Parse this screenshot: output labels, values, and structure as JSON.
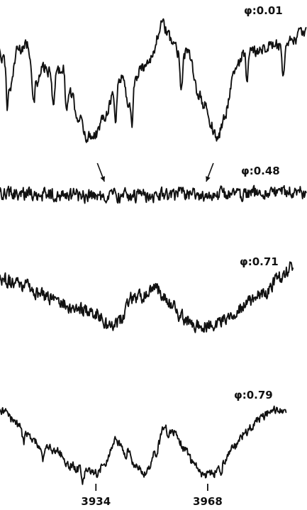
{
  "chart_data": {
    "type": "line",
    "title": "",
    "xlabel": "",
    "ylabel": "",
    "xlim": [
      3910,
      3998
    ],
    "grid": false,
    "x_ticks": [
      {
        "value": 3934,
        "label": "3934"
      },
      {
        "value": 3968,
        "label": "3968"
      }
    ],
    "series": [
      {
        "name": "φ:0.01",
        "x_range": [
          3898,
          3998
        ],
        "anchors": [
          [
            3898,
            0.9
          ],
          [
            3903,
            0.92
          ],
          [
            3906,
            0.7
          ],
          [
            3908,
            0.45
          ],
          [
            3910,
            0.78
          ],
          [
            3913,
            0.82
          ],
          [
            3916,
            0.48
          ],
          [
            3918,
            0.62
          ],
          [
            3921,
            0.55
          ],
          [
            3924,
            0.62
          ],
          [
            3926,
            0.4
          ],
          [
            3929,
            0.18
          ],
          [
            3931,
            0.02
          ],
          [
            3934,
            0.05
          ],
          [
            3937,
            0.22
          ],
          [
            3939,
            0.38
          ],
          [
            3942,
            0.55
          ],
          [
            3944,
            0.3
          ],
          [
            3946,
            0.52
          ],
          [
            3948,
            0.62
          ],
          [
            3951,
            0.72
          ],
          [
            3954,
            1.0
          ],
          [
            3957,
            0.86
          ],
          [
            3960,
            0.72
          ],
          [
            3962,
            0.76
          ],
          [
            3965,
            0.4
          ],
          [
            3967,
            0.3
          ],
          [
            3969,
            0.12
          ],
          [
            3971,
            0.0
          ],
          [
            3973,
            0.18
          ],
          [
            3976,
            0.58
          ],
          [
            3979,
            0.74
          ],
          [
            3982,
            0.76
          ],
          [
            3985,
            0.8
          ],
          [
            3988,
            0.82
          ],
          [
            3991,
            0.78
          ],
          [
            3994,
            0.86
          ],
          [
            3997,
            0.93
          ],
          [
            3998,
            0.92
          ]
        ],
        "noise": 0.07,
        "absorption_lines": [
          3903,
          3907,
          3915,
          3921,
          3925,
          3940,
          3945,
          3960,
          3980,
          3991
        ],
        "line_depth": 0.28
      },
      {
        "name": "φ:0.48",
        "x_range": [
          3902,
          3998
        ],
        "anchors": [
          [
            3902,
            0.55
          ],
          [
            3915,
            0.56
          ],
          [
            3930,
            0.5
          ],
          [
            3945,
            0.5
          ],
          [
            3960,
            0.52
          ],
          [
            3975,
            0.55
          ],
          [
            3990,
            0.6
          ],
          [
            3998,
            0.62
          ]
        ],
        "noise": 0.28,
        "absorption_lines": [],
        "line_depth": 0
      },
      {
        "name": "φ:0.71",
        "x_range": [
          3896,
          3994
        ],
        "anchors": [
          [
            3896,
            0.55
          ],
          [
            3900,
            0.78
          ],
          [
            3906,
            0.8
          ],
          [
            3912,
            0.74
          ],
          [
            3918,
            0.6
          ],
          [
            3924,
            0.48
          ],
          [
            3930,
            0.42
          ],
          [
            3934,
            0.38
          ],
          [
            3938,
            0.2
          ],
          [
            3941,
            0.28
          ],
          [
            3945,
            0.58
          ],
          [
            3949,
            0.6
          ],
          [
            3952,
            0.7
          ],
          [
            3956,
            0.54
          ],
          [
            3960,
            0.32
          ],
          [
            3965,
            0.2
          ],
          [
            3970,
            0.22
          ],
          [
            3975,
            0.35
          ],
          [
            3980,
            0.52
          ],
          [
            3985,
            0.64
          ],
          [
            3990,
            0.84
          ],
          [
            3994,
            1.0
          ]
        ],
        "noise": 0.12,
        "absorption_lines": [],
        "line_depth": 0
      },
      {
        "name": "φ:0.79",
        "x_range": [
          3895,
          3992
        ],
        "anchors": [
          [
            3895,
            0.62
          ],
          [
            3898,
            0.85
          ],
          [
            3902,
            0.92
          ],
          [
            3906,
            0.88
          ],
          [
            3910,
            0.72
          ],
          [
            3914,
            0.55
          ],
          [
            3918,
            0.42
          ],
          [
            3922,
            0.38
          ],
          [
            3926,
            0.18
          ],
          [
            3930,
            0.12
          ],
          [
            3934,
            0.08
          ],
          [
            3937,
            0.22
          ],
          [
            3940,
            0.52
          ],
          [
            3943,
            0.4
          ],
          [
            3946,
            0.18
          ],
          [
            3949,
            0.08
          ],
          [
            3952,
            0.35
          ],
          [
            3955,
            0.68
          ],
          [
            3958,
            0.62
          ],
          [
            3961,
            0.4
          ],
          [
            3964,
            0.18
          ],
          [
            3967,
            0.06
          ],
          [
            3970,
            0.08
          ],
          [
            3973,
            0.22
          ],
          [
            3976,
            0.42
          ],
          [
            3980,
            0.64
          ],
          [
            3984,
            0.8
          ],
          [
            3988,
            0.9
          ],
          [
            3992,
            0.86
          ]
        ],
        "noise": 0.08,
        "absorption_lines": [
          3912,
          3918,
          3930,
          3943,
          3956,
          3972
        ],
        "line_depth": 0.15
      }
    ],
    "annotations": [
      {
        "type": "arrow",
        "target_series": "φ:0.48",
        "x": 3934
      },
      {
        "type": "arrow",
        "target_series": "φ:0.48",
        "x": 3968
      }
    ]
  }
}
